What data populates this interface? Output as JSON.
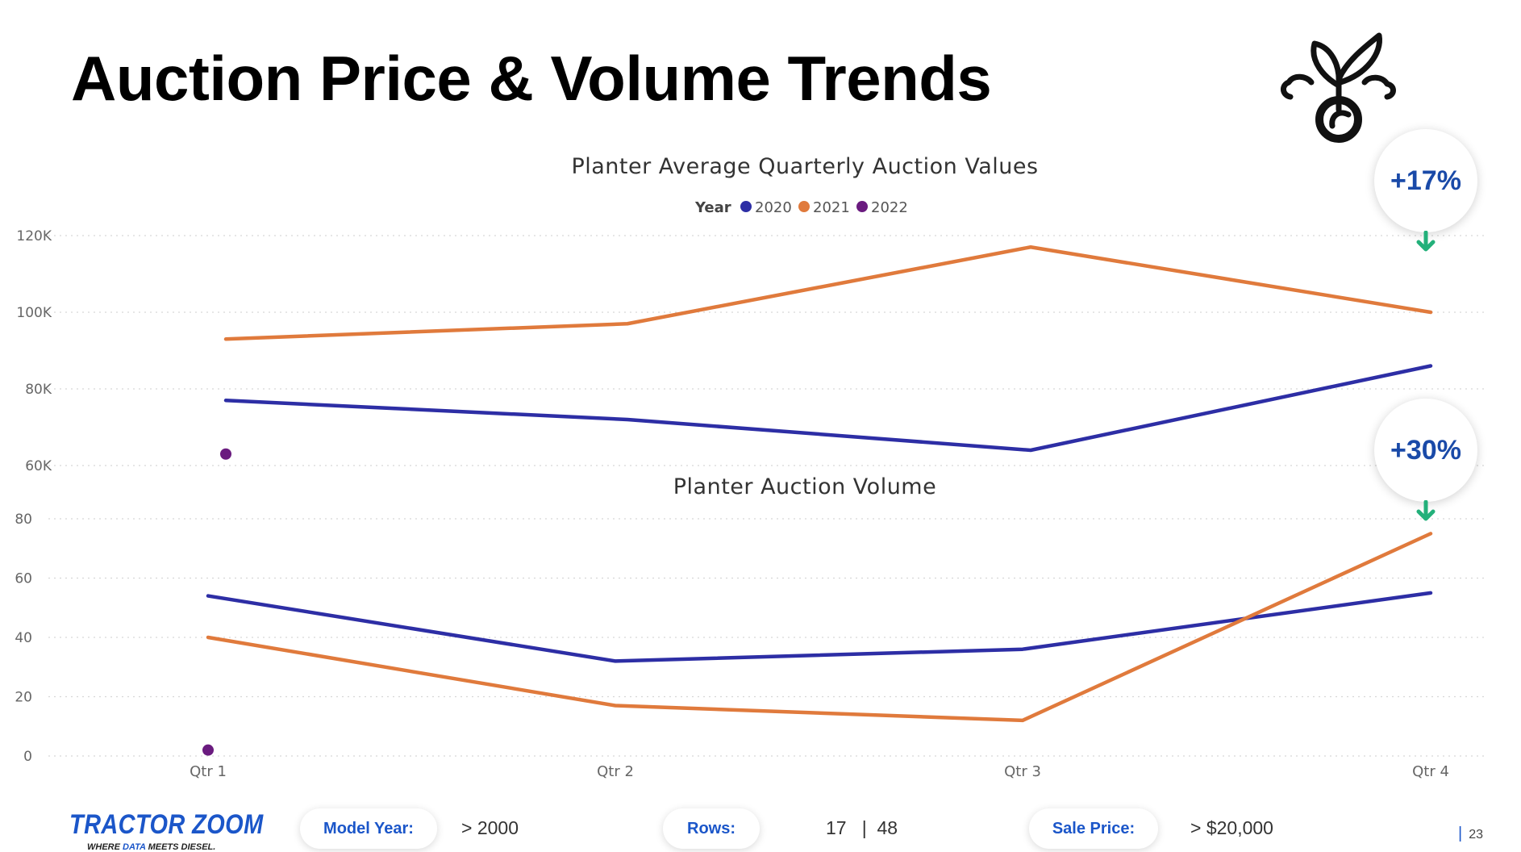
{
  "page": {
    "title": "Auction Price & Volume Trends",
    "page_number": "23"
  },
  "callouts": [
    {
      "label": "+17%"
    },
    {
      "label": "+30%"
    }
  ],
  "footer": {
    "logo_name": "TRACTOR ZOOM",
    "logo_tagline_pre": "WHERE ",
    "logo_tagline_accent": "DATA",
    "logo_tagline_post": " MEETS DIESEL.",
    "model_year_label": "Model Year:",
    "model_year_value": "> 2000",
    "rows_label": "Rows:",
    "rows_value": "17   |  48",
    "sale_price_label": "Sale Price:",
    "sale_price_value": "> $20,000"
  },
  "colors": {
    "y2020": "#2d2ea5",
    "y2021": "#e07a3c",
    "y2022": "#6a1b7f",
    "accent": "#1b56c9",
    "arrow": "#23b07a"
  },
  "chart_data": [
    {
      "type": "line",
      "title": "Planter Average Quarterly Auction Values",
      "legend_title": "Year",
      "legend_position": "top-center",
      "categories": [
        "Qtr 1",
        "Qtr 2",
        "Qtr 3",
        "Qtr 4"
      ],
      "series": [
        {
          "name": "2020",
          "values": [
            77000,
            72000,
            64000,
            86000
          ]
        },
        {
          "name": "2021",
          "values": [
            93000,
            97000,
            117000,
            100000
          ]
        },
        {
          "name": "2022",
          "values": [
            63000,
            null,
            null,
            null
          ]
        }
      ],
      "ylim": [
        60000,
        120000
      ],
      "yticks": [
        {
          "value": 60000,
          "label": "60K"
        },
        {
          "value": 80000,
          "label": "80K"
        },
        {
          "value": 100000,
          "label": "100K"
        },
        {
          "value": 120000,
          "label": "120K"
        }
      ],
      "grid": true
    },
    {
      "type": "line",
      "title": "Planter Auction Volume",
      "categories": [
        "Qtr 1",
        "Qtr 2",
        "Qtr 3",
        "Qtr 4"
      ],
      "series": [
        {
          "name": "2020",
          "values": [
            54,
            32,
            36,
            55
          ]
        },
        {
          "name": "2021",
          "values": [
            40,
            17,
            12,
            75
          ]
        },
        {
          "name": "2022",
          "values": [
            2,
            null,
            null,
            null
          ]
        }
      ],
      "ylim": [
        0,
        80
      ],
      "yticks": [
        {
          "value": 0,
          "label": "0"
        },
        {
          "value": 20,
          "label": "20"
        },
        {
          "value": 40,
          "label": "40"
        },
        {
          "value": 60,
          "label": "60"
        },
        {
          "value": 80,
          "label": "80"
        }
      ],
      "grid": true
    }
  ]
}
